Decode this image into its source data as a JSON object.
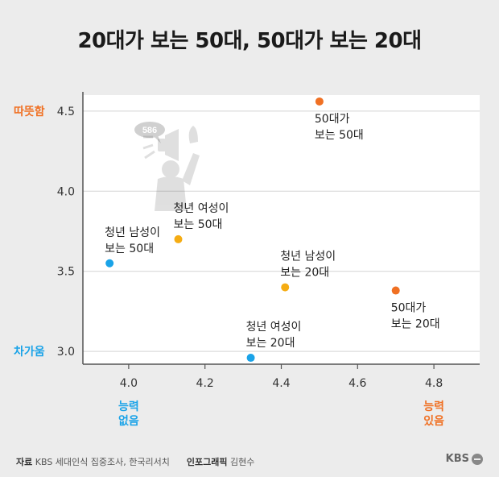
{
  "title": "20대가 보는 50대, 50대가 보는 20대",
  "y_extreme_labels": {
    "top": "따뜻함",
    "bottom": "차가움"
  },
  "x_extreme_labels": {
    "left": [
      "능력",
      "없음"
    ],
    "right": [
      "능력",
      "있음"
    ]
  },
  "colors": {
    "orange": "#f07023",
    "blue": "#1aa3e8",
    "yellow": "#f5ac13",
    "grid": "#d3d3d3",
    "axis": "#555555"
  },
  "footer": {
    "source_label": "자료",
    "source_text": "KBS 세대인식 집중조사, 한국리서치",
    "graphic_label": "인포그래픽",
    "graphic_text": "김현수"
  },
  "logo": "KBS",
  "icon_badge": "586",
  "chart_data": {
    "type": "scatter",
    "xlim": [
      3.88,
      4.92
    ],
    "ylim": [
      2.92,
      4.6
    ],
    "x_ticks": [
      4.0,
      4.2,
      4.4,
      4.6,
      4.8
    ],
    "x_tick_labels": [
      "4.0",
      "4.2",
      "4.4",
      "4.6",
      "4.8"
    ],
    "y_ticks": [
      3.0,
      3.5,
      4.0,
      4.5
    ],
    "y_tick_labels": [
      "3.0",
      "3.5",
      "4.0",
      "4.5"
    ],
    "grid": "horizontal",
    "points": [
      {
        "x": 4.5,
        "y": 4.56,
        "color": "orange",
        "label": [
          "50대가",
          "보는 50대"
        ],
        "label_pos": "below"
      },
      {
        "x": 4.13,
        "y": 3.7,
        "color": "yellow",
        "label": [
          "청년 여성이",
          "보는 50대"
        ],
        "label_pos": "above"
      },
      {
        "x": 3.95,
        "y": 3.55,
        "color": "blue",
        "label": [
          "청년 남성이",
          "보는 50대"
        ],
        "label_pos": "above"
      },
      {
        "x": 4.41,
        "y": 3.4,
        "color": "yellow",
        "label": [
          "청년 남성이",
          "보는 20대"
        ],
        "label_pos": "above"
      },
      {
        "x": 4.7,
        "y": 3.38,
        "color": "orange",
        "label": [
          "50대가",
          "보는 20대"
        ],
        "label_pos": "below"
      },
      {
        "x": 4.32,
        "y": 2.96,
        "color": "blue",
        "label": [
          "청년 여성이",
          "보는 20대"
        ],
        "label_pos": "above"
      }
    ]
  }
}
